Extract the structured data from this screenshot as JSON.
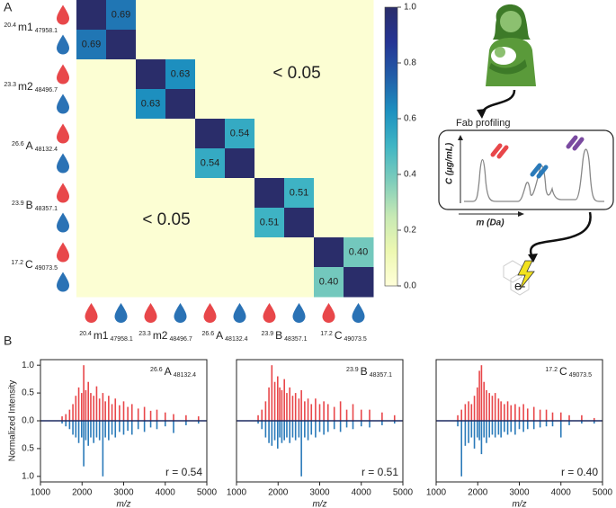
{
  "panel_labels": [
    "A",
    "B"
  ],
  "diagram": {
    "step": "Fab profiling",
    "y_axis": "C (µg/mL)",
    "x_axis": "m (Da)",
    "output": "e-"
  },
  "chart_data": [
    {
      "type": "heatmap",
      "groups": [
        {
          "sup": "20.4",
          "name": "m1",
          "sub": "47958.1"
        },
        {
          "sup": "23.3",
          "name": "m2",
          "sub": "48496.7"
        },
        {
          "sup": "26.6",
          "name": "A",
          "sub": "48132.4"
        },
        {
          "sup": "23.9",
          "name": "B",
          "sub": "48357.1"
        },
        {
          "sup": "17.2",
          "name": "C",
          "sub": "49073.5"
        }
      ],
      "values": [
        [
          1,
          0.69,
          0.02,
          0.02,
          0.02,
          0.02,
          0.02,
          0.02,
          0.02,
          0.02
        ],
        [
          0.69,
          1,
          0.02,
          0.02,
          0.02,
          0.02,
          0.02,
          0.02,
          0.02,
          0.02
        ],
        [
          0.02,
          0.02,
          1,
          0.63,
          0.02,
          0.02,
          0.02,
          0.02,
          0.02,
          0.02
        ],
        [
          0.02,
          0.02,
          0.63,
          1,
          0.02,
          0.02,
          0.02,
          0.02,
          0.02,
          0.02
        ],
        [
          0.02,
          0.02,
          0.02,
          0.02,
          1,
          0.54,
          0.02,
          0.02,
          0.02,
          0.02
        ],
        [
          0.02,
          0.02,
          0.02,
          0.02,
          0.54,
          1,
          0.02,
          0.02,
          0.02,
          0.02
        ],
        [
          0.02,
          0.02,
          0.02,
          0.02,
          0.02,
          0.02,
          1,
          0.51,
          0.02,
          0.02
        ],
        [
          0.02,
          0.02,
          0.02,
          0.02,
          0.02,
          0.02,
          0.51,
          1,
          0.02,
          0.02
        ],
        [
          0.02,
          0.02,
          0.02,
          0.02,
          0.02,
          0.02,
          0.02,
          0.02,
          1,
          0.4
        ],
        [
          0.02,
          0.02,
          0.02,
          0.02,
          0.02,
          0.02,
          0.02,
          0.02,
          0.4,
          1
        ]
      ],
      "value_labels": [
        [
          null,
          "0.69",
          null,
          null,
          null,
          null,
          null,
          null,
          null,
          null
        ],
        [
          "0.69",
          null,
          null,
          null,
          null,
          null,
          null,
          null,
          null,
          null
        ],
        [
          null,
          null,
          null,
          "0.63",
          null,
          null,
          null,
          null,
          null,
          null
        ],
        [
          null,
          null,
          "0.63",
          null,
          null,
          null,
          null,
          null,
          null,
          null
        ],
        [
          null,
          null,
          null,
          null,
          null,
          "0.54",
          null,
          null,
          null,
          null
        ],
        [
          null,
          null,
          null,
          null,
          "0.54",
          null,
          null,
          null,
          null,
          null
        ],
        [
          null,
          null,
          null,
          null,
          null,
          null,
          null,
          "0.51",
          null,
          null
        ],
        [
          null,
          null,
          null,
          null,
          null,
          null,
          "0.51",
          null,
          null,
          null
        ],
        [
          null,
          null,
          null,
          null,
          null,
          null,
          null,
          null,
          null,
          "0.40"
        ],
        [
          null,
          null,
          null,
          null,
          null,
          null,
          null,
          null,
          "0.40",
          null
        ]
      ],
      "annotations": [
        "< 0.05",
        "< 0.05"
      ],
      "colormap": "YlGnBu",
      "clim": [
        0,
        1
      ],
      "cticks": [
        {
          "value": 0,
          "label": "0.0"
        },
        0.2,
        0.4,
        0.6,
        0.8,
        {
          "value": 1,
          "label": "1.0"
        }
      ]
    },
    {
      "type": "mirror",
      "annotation": {
        "sup": "26.6",
        "name": "A",
        "sub": "48132.4"
      },
      "r_label": "r = 0.54",
      "xlabel": "m/z",
      "ylabel": "Normalized Intensity",
      "x": [
        1520,
        1610,
        1700,
        1780,
        1850,
        1920,
        1990,
        2040,
        2090,
        2150,
        2210,
        2280,
        2350,
        2420,
        2500,
        2560,
        2640,
        2720,
        2800,
        2900,
        3000,
        3100,
        3200,
        3350,
        3500,
        3650,
        3800,
        4000,
        4200,
        4500,
        4800
      ],
      "series": [
        {
          "color": "#e8474a",
          "values": [
            0.08,
            0.12,
            0.2,
            0.3,
            0.45,
            0.6,
            0.5,
            1,
            0.55,
            0.7,
            0.5,
            0.45,
            0.62,
            0.4,
            0.5,
            0.35,
            0.45,
            0.3,
            0.4,
            0.28,
            0.35,
            0.25,
            0.3,
            0.22,
            0.25,
            0.18,
            0.2,
            0.15,
            0.12,
            0.1,
            0.08
          ]
        },
        {
          "color": "#2a7ab9",
          "values": [
            -0.05,
            -0.1,
            -0.15,
            -0.25,
            -0.3,
            -0.4,
            -0.3,
            -0.82,
            -0.35,
            -0.45,
            -0.3,
            -0.4,
            -0.3,
            -0.35,
            -1,
            -0.3,
            -0.35,
            -0.25,
            -0.3,
            -0.2,
            -0.25,
            -0.18,
            -0.25,
            -0.15,
            -0.2,
            -0.12,
            -0.15,
            -0.1,
            -0.22,
            -0.08,
            -0.05
          ]
        }
      ],
      "xlim": [
        1000,
        5000
      ],
      "xticks": [
        1000,
        2000,
        3000,
        4000,
        5000
      ],
      "ylim": [
        -1.1,
        1.1
      ],
      "yticks": [
        {
          "value": 1,
          "label": "1.0"
        },
        0.5,
        {
          "value": 0,
          "label": "0.0"
        },
        {
          "value": -0.5,
          "label": "0.5"
        },
        {
          "value": -1,
          "label": "1.0"
        }
      ]
    },
    {
      "type": "mirror",
      "annotation": {
        "sup": "23.9",
        "name": "B",
        "sub": "48357.1"
      },
      "r_label": "r = 0.51",
      "xlabel": "m/z",
      "x": [
        1520,
        1610,
        1700,
        1780,
        1850,
        1920,
        1990,
        2040,
        2090,
        2150,
        2210,
        2280,
        2350,
        2420,
        2500,
        2560,
        2640,
        2720,
        2800,
        2900,
        3000,
        3100,
        3200,
        3350,
        3500,
        3650,
        3800,
        4000,
        4200,
        4500,
        4800
      ],
      "series": [
        {
          "color": "#e8474a",
          "values": [
            0.1,
            0.2,
            0.35,
            0.6,
            1,
            0.7,
            0.8,
            0.6,
            0.55,
            0.75,
            0.5,
            0.6,
            0.45,
            0.5,
            0.4,
            0.55,
            0.35,
            0.4,
            0.3,
            0.4,
            0.3,
            0.35,
            0.3,
            0.25,
            0.35,
            0.2,
            0.3,
            0.2,
            0.2,
            0.15,
            0.1
          ]
        },
        {
          "color": "#2a7ab9",
          "values": [
            -0.05,
            -0.15,
            -0.3,
            -0.4,
            -0.45,
            -0.35,
            -0.5,
            -0.3,
            -0.4,
            -0.35,
            -0.3,
            -0.4,
            -0.3,
            -0.35,
            -0.3,
            -1,
            -0.3,
            -0.35,
            -0.25,
            -0.3,
            -0.2,
            -0.25,
            -0.2,
            -0.15,
            -0.2,
            -0.12,
            -0.15,
            -0.1,
            -0.12,
            -0.08,
            -0.05
          ]
        }
      ],
      "xlim": [
        1000,
        5000
      ],
      "xticks": [
        1000,
        2000,
        3000,
        4000,
        5000
      ],
      "ylim": [
        -1.1,
        1.1
      ]
    },
    {
      "type": "mirror",
      "annotation": {
        "sup": "17.2",
        "name": "C",
        "sub": "49073.5"
      },
      "r_label": "r = 0.40",
      "xlabel": "m/z",
      "x": [
        1520,
        1610,
        1700,
        1780,
        1850,
        1920,
        1990,
        2040,
        2090,
        2150,
        2210,
        2280,
        2350,
        2420,
        2500,
        2560,
        2640,
        2720,
        2800,
        2900,
        3000,
        3100,
        3200,
        3350,
        3500,
        3650,
        3800,
        4000,
        4200,
        4500,
        4800
      ],
      "series": [
        {
          "color": "#e8474a",
          "values": [
            0.1,
            0.2,
            0.3,
            0.35,
            0.3,
            0.45,
            0.6,
            0.9,
            1,
            0.7,
            0.55,
            0.5,
            0.45,
            0.5,
            0.4,
            0.35,
            0.3,
            0.35,
            0.28,
            0.3,
            0.25,
            0.3,
            0.22,
            0.25,
            0.2,
            0.2,
            0.15,
            0.15,
            0.1,
            0.1,
            0.05
          ]
        },
        {
          "color": "#2a7ab9",
          "values": [
            -0.1,
            -1,
            -0.45,
            -0.4,
            -0.3,
            -0.5,
            -0.3,
            -0.35,
            -0.6,
            -0.3,
            -0.4,
            -0.3,
            -0.25,
            -0.3,
            -0.25,
            -0.3,
            -0.2,
            -0.25,
            -0.2,
            -0.25,
            -0.15,
            -0.2,
            -0.15,
            -0.15,
            -0.12,
            -0.1,
            -0.1,
            -0.3,
            -0.08,
            -0.05,
            -0.05
          ]
        }
      ],
      "xlim": [
        1000,
        5000
      ],
      "xticks": [
        1000,
        2000,
        3000,
        4000,
        5000
      ],
      "ylim": [
        -1.1,
        1.1
      ]
    }
  ]
}
